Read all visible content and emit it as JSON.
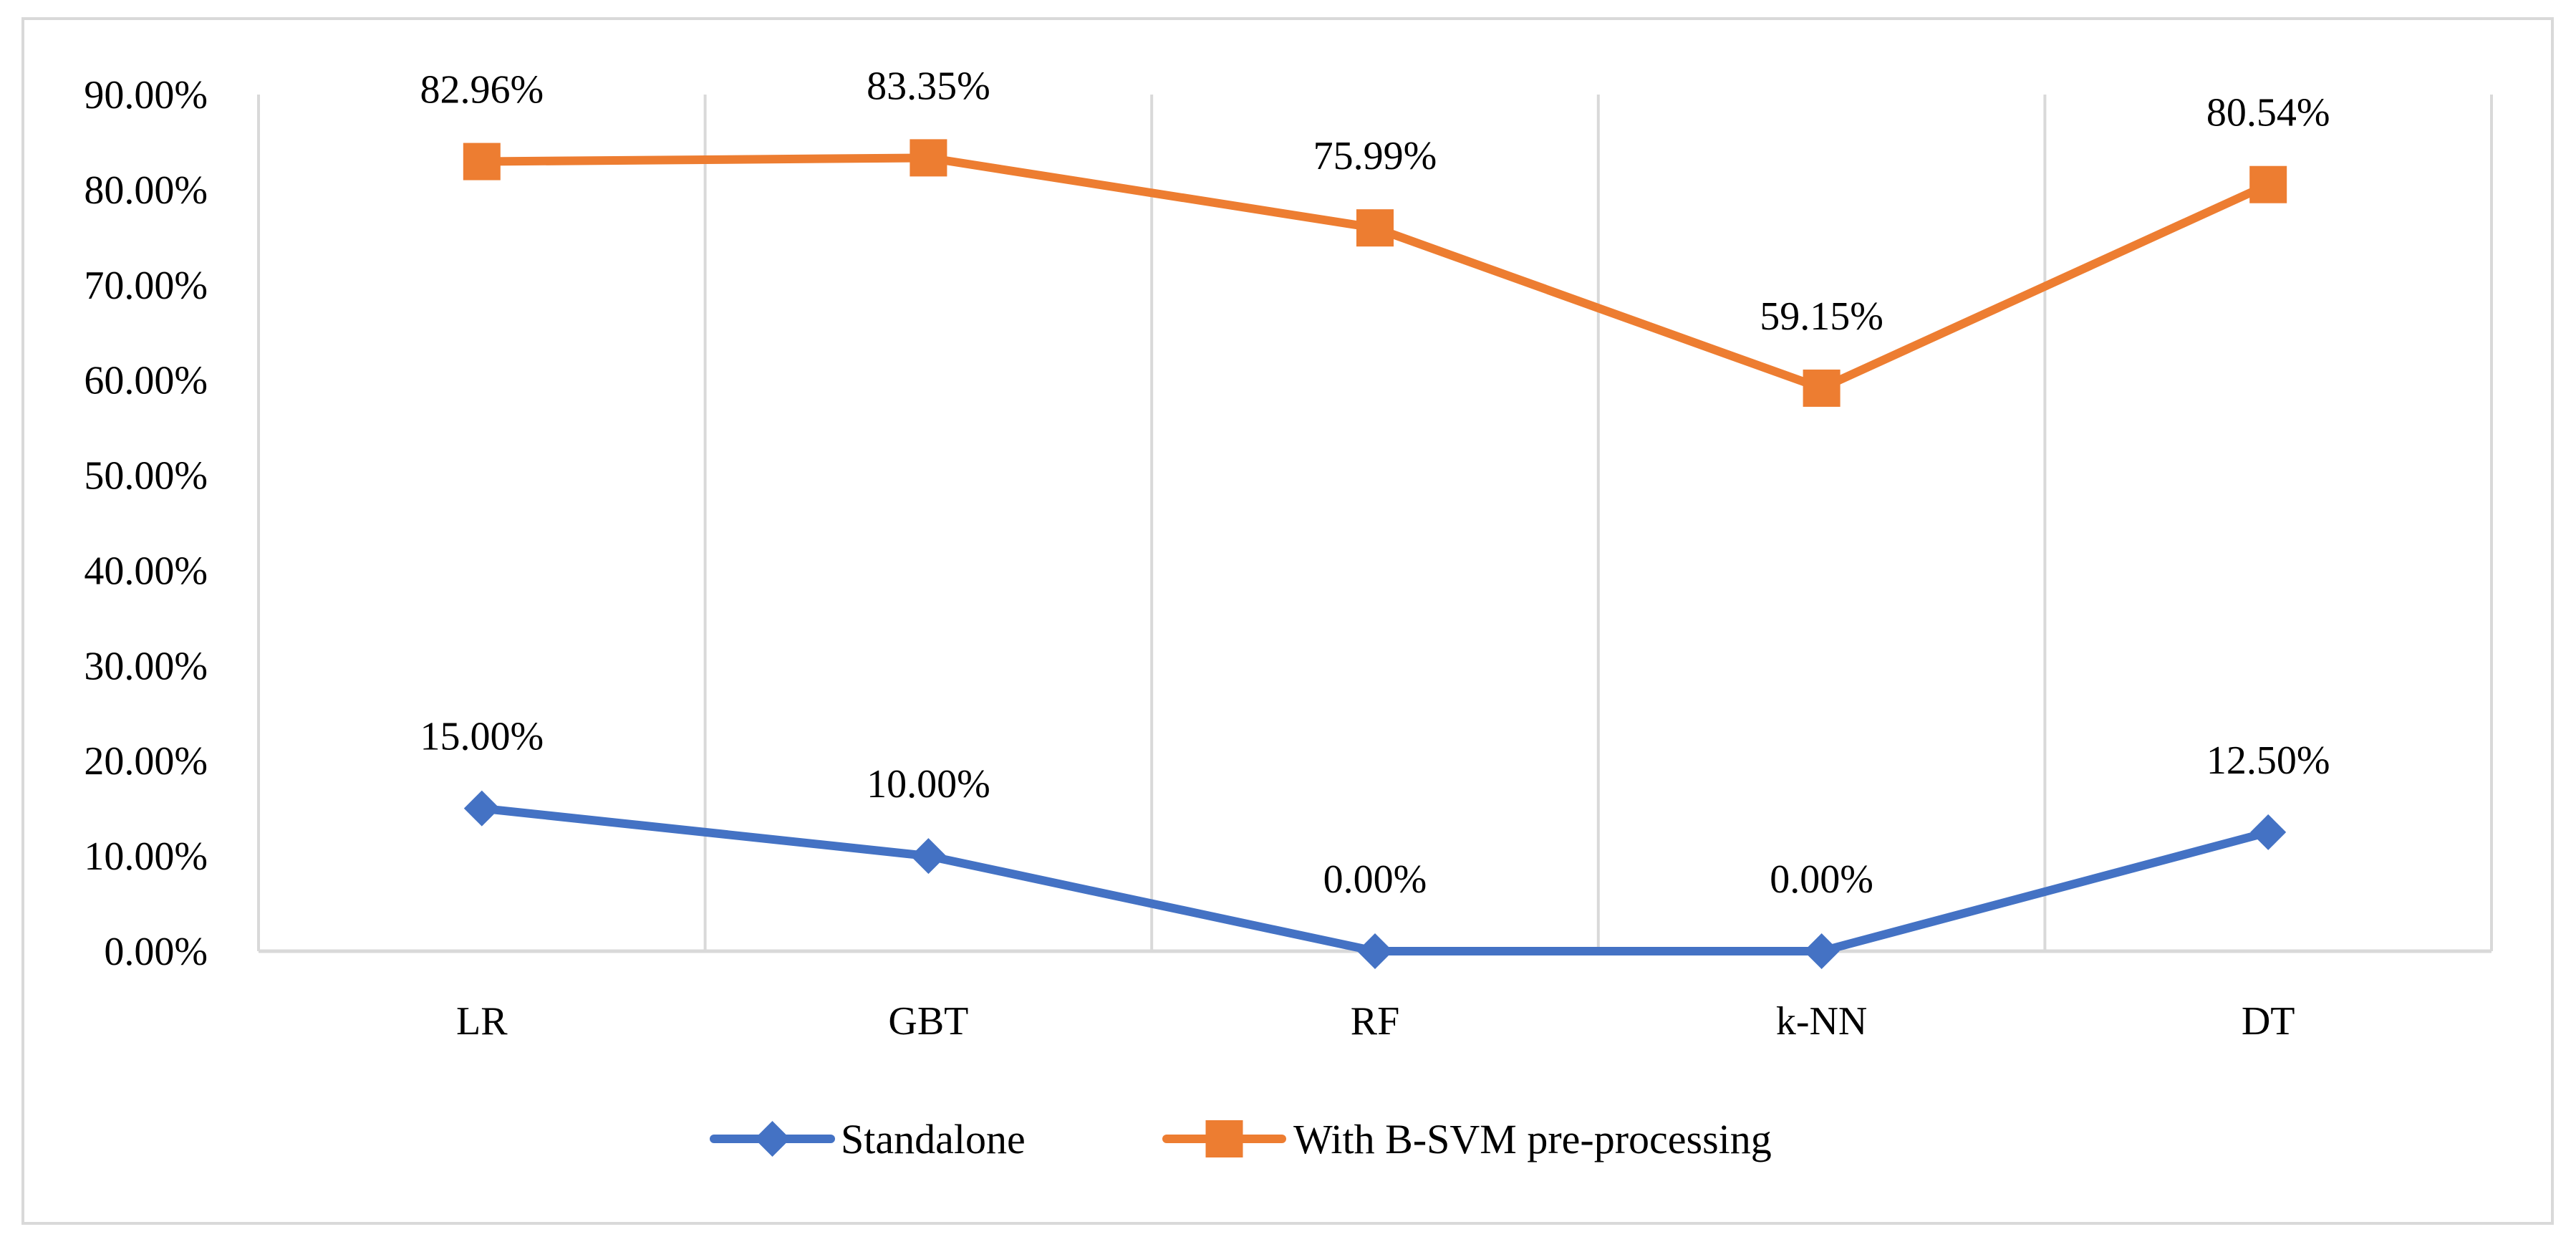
{
  "chart_data": {
    "type": "line",
    "categories": [
      "LR",
      "GBT",
      "RF",
      "k-NN",
      "DT"
    ],
    "series": [
      {
        "name": "Standalone",
        "values": [
          15.0,
          10.0,
          0.0,
          0.0,
          12.5
        ],
        "labels": [
          "15.00%",
          "10.00%",
          "0.00%",
          "0.00%",
          "12.50%"
        ],
        "color": "#4472c4",
        "marker": "diamond"
      },
      {
        "name": "With B-SVM pre-processing",
        "values": [
          82.96,
          83.35,
          75.99,
          59.15,
          80.54
        ],
        "labels": [
          "82.96%",
          "83.35%",
          "75.99%",
          "59.15%",
          "80.54%"
        ],
        "color": "#ed7d31",
        "marker": "square"
      }
    ],
    "yticks": [
      "0.00%",
      "10.00%",
      "20.00%",
      "30.00%",
      "40.00%",
      "50.00%",
      "60.00%",
      "70.00%",
      "80.00%",
      "90.00%"
    ],
    "ylim": [
      0,
      90
    ],
    "grid": "vertical",
    "legend_position": "bottom"
  }
}
